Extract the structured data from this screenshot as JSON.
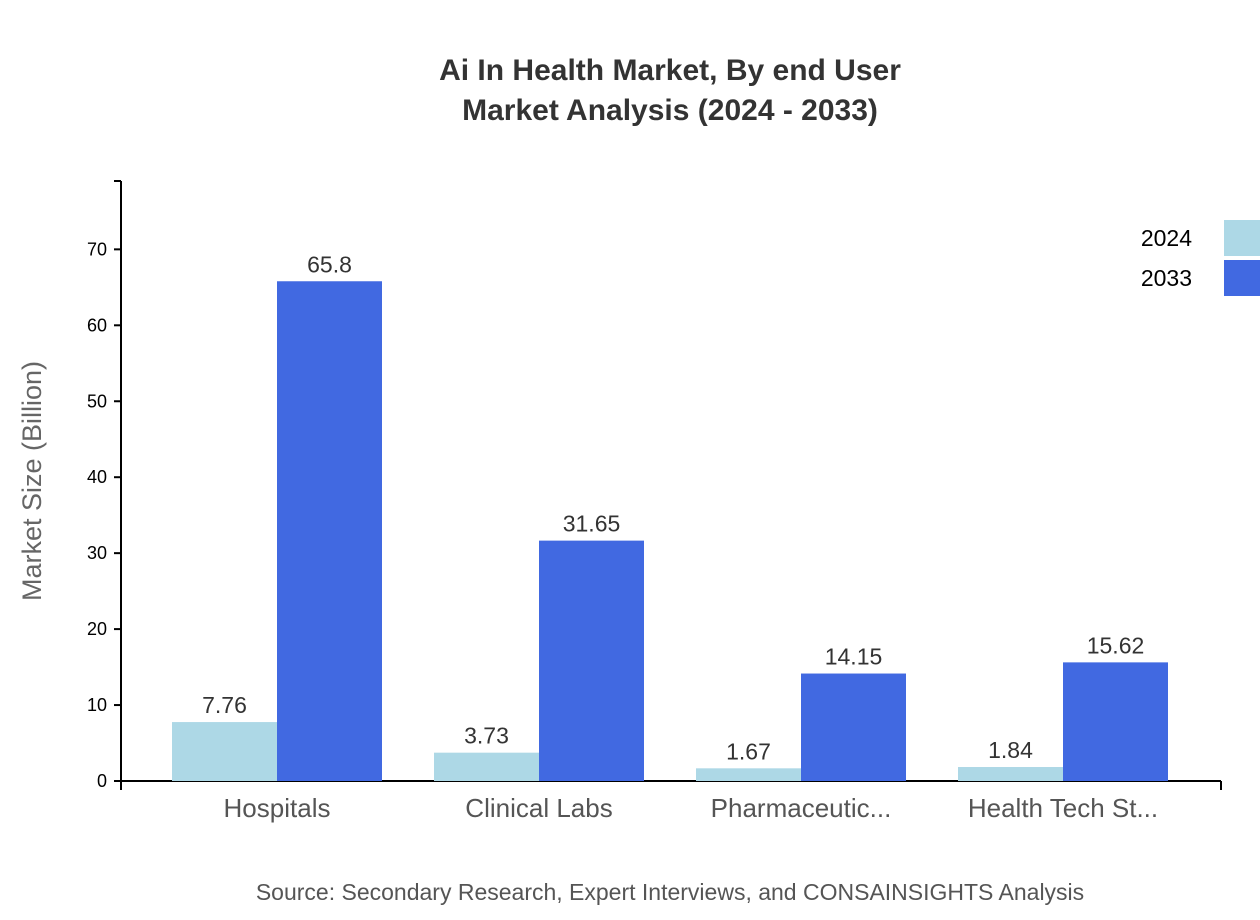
{
  "chart_data": {
    "type": "bar",
    "title": "Ai In Health Market, By end User",
    "subtitle": "Market Analysis (2024 - 2033)",
    "xlabel": "",
    "ylabel": "Market Size (Billion)",
    "ylim": [
      0,
      79
    ],
    "yticks": [
      0,
      10,
      20,
      30,
      40,
      50,
      60,
      70
    ],
    "categories": [
      "Hospitals",
      "Clinical Labs",
      "Pharmaceutic...",
      "Health Tech St..."
    ],
    "series": [
      {
        "name": "2024",
        "color": "#add8e6",
        "values": [
          7.76,
          3.73,
          1.67,
          1.84
        ]
      },
      {
        "name": "2033",
        "color": "#4169e1",
        "values": [
          65.8,
          31.65,
          14.15,
          15.62
        ]
      }
    ],
    "legend_position": "top-right",
    "grid": false
  },
  "source": "Source: Secondary Research, Expert Interviews, and CONSAINSIGHTS Analysis"
}
